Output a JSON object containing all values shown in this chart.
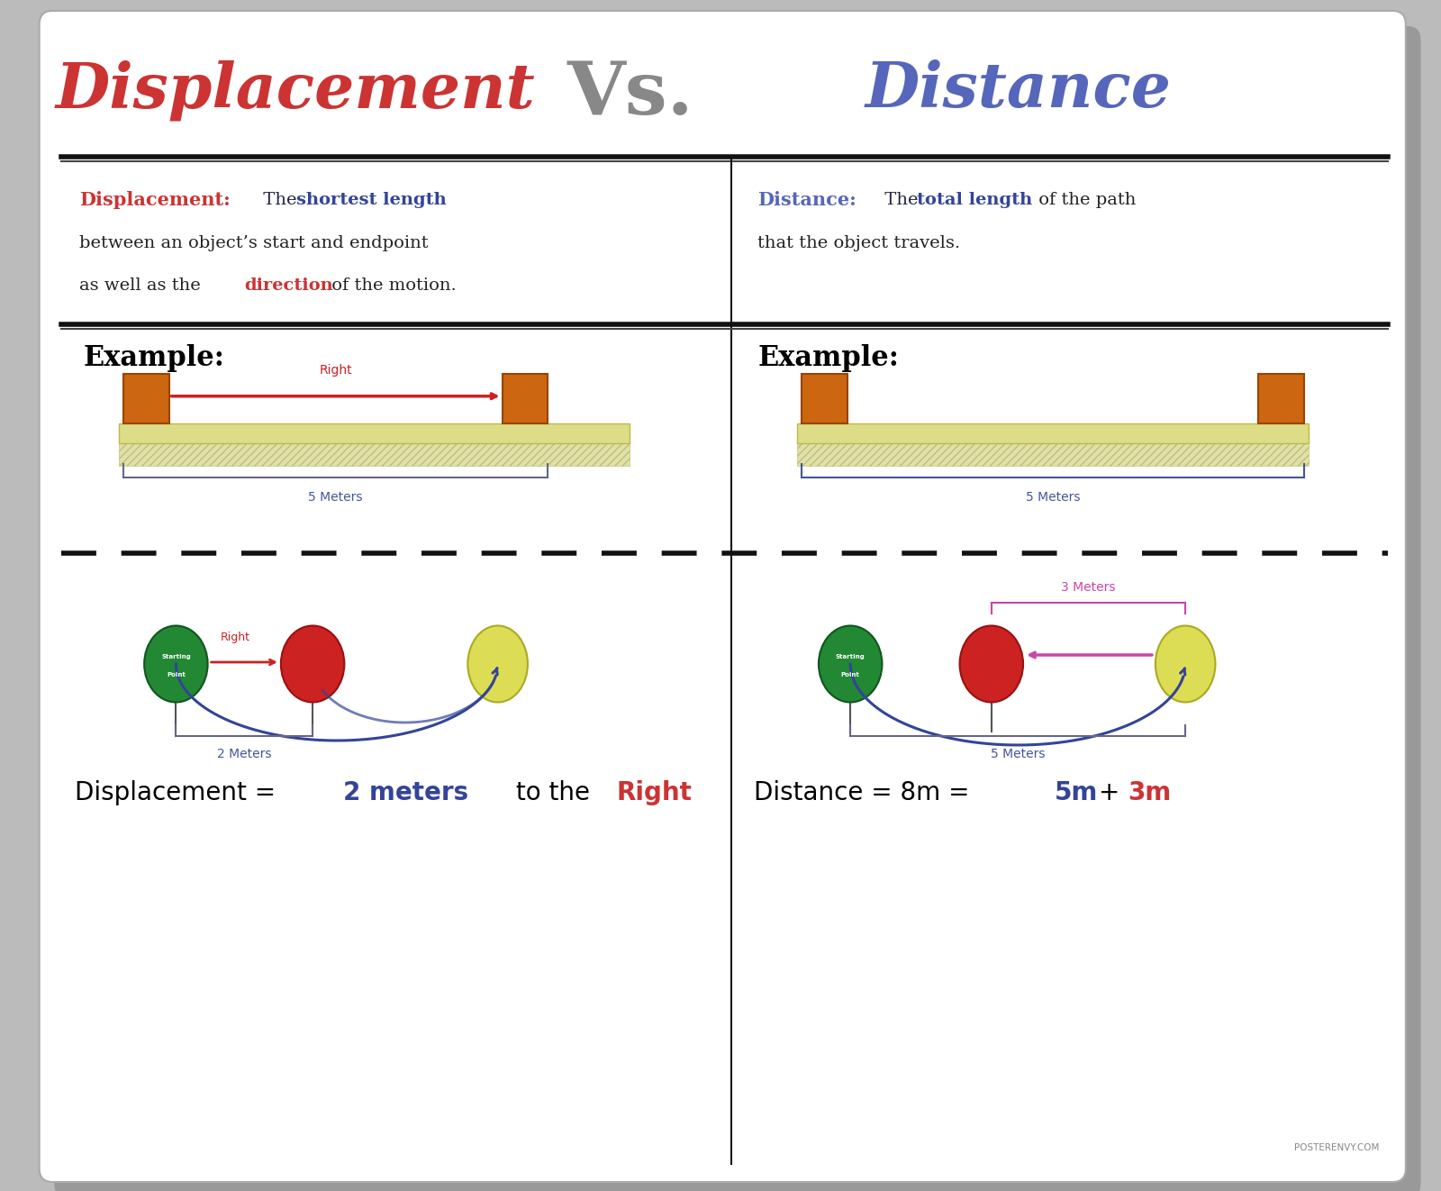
{
  "title_displacement": "Displacement",
  "title_vs": "Vs.",
  "title_distance": "Distance",
  "displacement_color": "#CC3333",
  "distance_color": "#5566BB",
  "vs_color": "#888888",
  "def_disp_label": "Displacement:",
  "def_disp_highlight": "shortest length",
  "def_disp_line2": "between an object’s start and endpoint",
  "def_disp_line3a": "as well as the ",
  "def_disp_direction": "direction",
  "def_disp_line3b": " of the motion.",
  "def_dist_label": "Distance:",
  "def_dist_highlight": "total length",
  "def_dist_line2": "that the object travels.",
  "example_label": "Example:",
  "green_color": "#228833",
  "red_color": "#CC2222",
  "yellow_color": "#DDDD55",
  "blue_arc_color": "#334499",
  "pink_color": "#CC44AA",
  "gray_bracket": "#666688",
  "orange_box": "#CC6611",
  "yellow_track": "#DDDD88",
  "track_hatch_color": "#CCBB66"
}
